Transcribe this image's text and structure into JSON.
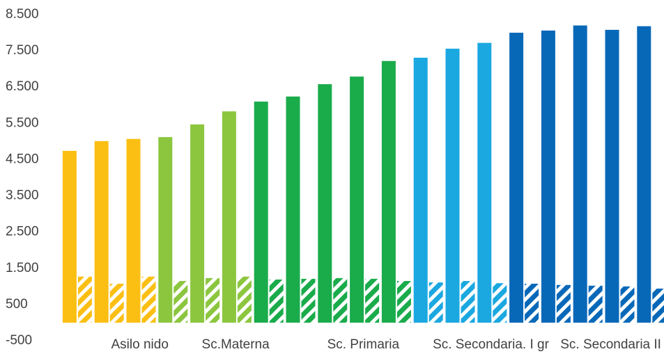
{
  "chart_data": {
    "type": "bar",
    "categories": [
      null,
      "Asilo nido",
      null,
      null,
      "Sc.Materna",
      null,
      null,
      null,
      "Sc. Primaria",
      null,
      null,
      null,
      "Sc. Secondaria. I gr",
      null,
      null,
      null,
      "Sc. Secondaria II gr",
      null,
      null
    ],
    "series": [
      {
        "pattern": "solid",
        "colors": [
          "#fbbf14",
          "#fbbf14",
          "#fbbf14",
          "#8cc63f",
          "#8cc63f",
          "#8cc63f",
          "#1aab4b",
          "#1aab4b",
          "#1aab4b",
          "#1aab4b",
          "#1aab4b",
          "#1ba8e0",
          "#1ba8e0",
          "#1ba8e0",
          "#0868b8",
          "#0868b8",
          "#0868b8",
          "#0868b8",
          "#0868b8"
        ],
        "values": [
          4740,
          5010,
          5070,
          5120,
          5470,
          5830,
          6100,
          6240,
          6580,
          6790,
          7220,
          7310,
          7560,
          7720,
          8000,
          8060,
          8200,
          8080,
          8180
        ]
      },
      {
        "pattern": "hatched",
        "colors": [
          "#fbbf14",
          "#fbbf14",
          "#fbbf14",
          "#8cc63f",
          "#8cc63f",
          "#8cc63f",
          "#1aab4b",
          "#1aab4b",
          "#1aab4b",
          "#1aab4b",
          "#1aab4b",
          "#1ba8e0",
          "#1ba8e0",
          "#1ba8e0",
          "#0868b8",
          "#0868b8",
          "#0868b8",
          "#0868b8",
          "#0868b8"
        ],
        "values": [
          1270,
          1075,
          1270,
          1150,
          1230,
          1270,
          1190,
          1210,
          1230,
          1210,
          1150,
          1110,
          1150,
          1090,
          1075,
          1040,
          1020,
          1000,
          940
        ]
      }
    ],
    "ylim": [
      -500,
      8500
    ],
    "yticks": [
      {
        "value": -500,
        "label": "-500"
      },
      500,
      {
        "value": 1500,
        "label": "1.500"
      },
      {
        "value": 2500,
        "label": "2.500"
      },
      {
        "value": 3500,
        "label": "3.500"
      },
      {
        "value": 4500,
        "label": "4.500"
      },
      {
        "value": 5500,
        "label": "5.500"
      },
      {
        "value": 6500,
        "label": "6.500"
      },
      {
        "value": 7500,
        "label": "7.500"
      },
      {
        "value": 8500,
        "label": "8.500"
      }
    ],
    "grid": false
  }
}
